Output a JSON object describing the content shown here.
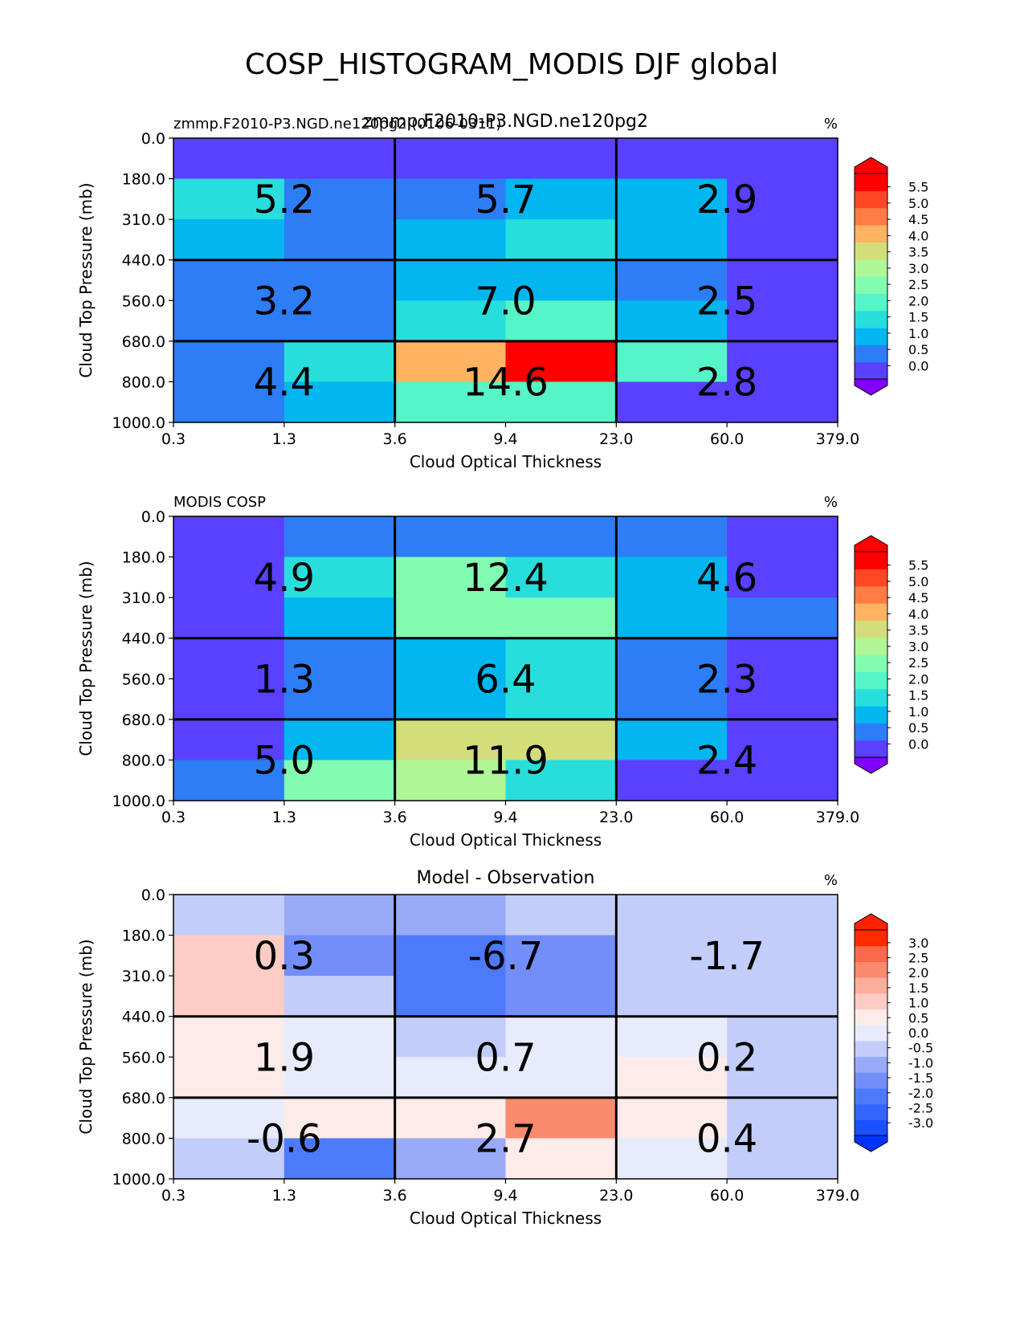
{
  "figure": {
    "suptitle": "COSP_HISTOGRAM_MODIS DJF global"
  },
  "chart_data": [
    {
      "type": "heatmap",
      "title_left": "zmmp.F2010-P3.NGD.ne120pg2 (0106-0311)",
      "title_center": "zmmp.F2010-P3.NGD.ne120pg2",
      "title_right": "%",
      "xlabel": "Cloud Optical Thickness",
      "ylabel": "Cloud Top Pressure (mb)",
      "xticks": [
        "0.3",
        "1.3",
        "3.6",
        "9.4",
        "23.0",
        "60.0",
        "379.0"
      ],
      "yticks": [
        "0.0",
        "180.0",
        "310.0",
        "440.0",
        "560.0",
        "680.0",
        "800.0",
        "1000.0"
      ],
      "cmap": "rainbow",
      "levels": [
        0.0,
        0.5,
        1.0,
        1.5,
        2.0,
        2.5,
        3.0,
        3.5,
        4.0,
        4.5,
        5.0,
        5.5
      ],
      "colorbar_ticks": [
        "0.0",
        "0.5",
        "1.0",
        "1.5",
        "2.0",
        "2.5",
        "3.0",
        "3.5",
        "4.0",
        "4.5",
        "5.0",
        "5.5"
      ],
      "cells": [
        [
          0.2,
          0.2,
          0.2,
          0.2,
          0.2,
          0.2
        ],
        [
          1.9,
          0.8,
          0.8,
          1.4,
          1.4,
          0.2
        ],
        [
          1.4,
          0.8,
          1.4,
          1.8,
          1.4,
          0.2
        ],
        [
          0.8,
          0.8,
          1.4,
          1.4,
          0.8,
          0.2
        ],
        [
          0.8,
          0.8,
          1.8,
          2.3,
          1.4,
          0.2
        ],
        [
          0.8,
          1.9,
          4.2,
          5.7,
          2.3,
          0.2
        ],
        [
          0.8,
          1.4,
          2.3,
          2.3,
          0.2,
          0.2
        ]
      ],
      "block_labels": [
        [
          "5.2",
          "5.7",
          "2.9"
        ],
        [
          "3.2",
          "7.0",
          "2.5"
        ],
        [
          "4.4",
          "14.6",
          "2.8"
        ]
      ]
    },
    {
      "type": "heatmap",
      "title_left": "MODIS COSP",
      "title_center": "",
      "title_right": "%",
      "xlabel": "Cloud Optical Thickness",
      "ylabel": "Cloud Top Pressure (mb)",
      "xticks": [
        "0.3",
        "1.3",
        "3.6",
        "9.4",
        "23.0",
        "60.0",
        "379.0"
      ],
      "yticks": [
        "0.0",
        "180.0",
        "310.0",
        "440.0",
        "560.0",
        "680.0",
        "800.0",
        "1000.0"
      ],
      "cmap": "rainbow",
      "levels": [
        0.0,
        0.5,
        1.0,
        1.5,
        2.0,
        2.5,
        3.0,
        3.5,
        4.0,
        4.5,
        5.0,
        5.5
      ],
      "colorbar_ticks": [
        "0.0",
        "0.5",
        "1.0",
        "1.5",
        "2.0",
        "2.5",
        "3.0",
        "3.5",
        "4.0",
        "4.5",
        "5.0",
        "5.5"
      ],
      "cells": [
        [
          0.2,
          0.8,
          0.8,
          0.8,
          0.8,
          0.2
        ],
        [
          0.2,
          1.8,
          2.7,
          1.9,
          1.4,
          0.2
        ],
        [
          0.2,
          1.4,
          2.8,
          2.8,
          1.4,
          0.8
        ],
        [
          0.2,
          0.8,
          1.4,
          1.8,
          0.8,
          0.2
        ],
        [
          0.2,
          0.8,
          1.4,
          1.8,
          0.8,
          0.2
        ],
        [
          0.2,
          1.4,
          3.7,
          3.7,
          1.4,
          0.2
        ],
        [
          0.8,
          2.8,
          3.2,
          1.8,
          0.2,
          0.2
        ]
      ],
      "block_labels": [
        [
          "4.9",
          "12.4",
          "4.6"
        ],
        [
          "1.3",
          "6.4",
          "2.3"
        ],
        [
          "5.0",
          "11.9",
          "2.4"
        ]
      ]
    },
    {
      "type": "heatmap",
      "title_left": "",
      "title_center": "Model - Observation",
      "title_right": "%",
      "xlabel": "Cloud Optical Thickness",
      "ylabel": "Cloud Top Pressure (mb)",
      "xticks": [
        "0.3",
        "1.3",
        "3.6",
        "9.4",
        "23.0",
        "60.0",
        "379.0"
      ],
      "yticks": [
        "0.0",
        "180.0",
        "310.0",
        "440.0",
        "560.0",
        "680.0",
        "800.0",
        "1000.0"
      ],
      "cmap": "bwr",
      "levels": [
        -3.0,
        -2.5,
        -2.0,
        -1.5,
        -1.0,
        -0.5,
        0.0,
        0.5,
        1.0,
        1.5,
        2.0,
        2.5,
        3.0
      ],
      "colorbar_ticks": [
        "-3.0",
        "-2.5",
        "-2.0",
        "-1.5",
        "-1.0",
        "-0.5",
        "0.0",
        "0.5",
        "1.0",
        "1.5",
        "2.0",
        "2.5",
        "3.0"
      ],
      "cells": [
        [
          -0.2,
          -0.8,
          -0.8,
          -0.2,
          -0.2,
          -0.2
        ],
        [
          1.3,
          -1.3,
          -1.8,
          -1.3,
          -0.2,
          -0.2
        ],
        [
          1.3,
          -0.2,
          -1.8,
          -1.3,
          -0.2,
          -0.2
        ],
        [
          0.8,
          0.2,
          -0.2,
          0.2,
          0.2,
          -0.2
        ],
        [
          0.8,
          0.2,
          0.2,
          0.2,
          0.8,
          -0.2
        ],
        [
          0.2,
          0.8,
          0.8,
          2.3,
          0.8,
          -0.2
        ],
        [
          -0.2,
          -1.8,
          -0.8,
          0.8,
          0.2,
          -0.2
        ]
      ],
      "block_labels": [
        [
          "0.3",
          "-6.7",
          "-1.7"
        ],
        [
          "1.9",
          "0.7",
          "0.2"
        ],
        [
          "-0.6",
          "2.7",
          "0.4"
        ]
      ]
    }
  ]
}
